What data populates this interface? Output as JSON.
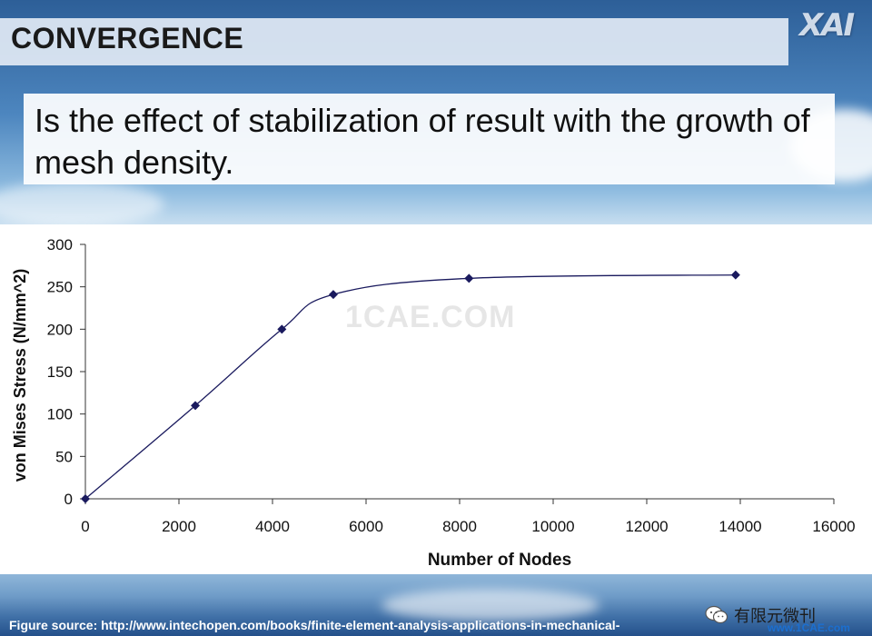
{
  "slide": {
    "title": "CONVERGENCE",
    "logo_text": "XAI",
    "description": "Is the effect of stabilization of result with the growth of mesh density.",
    "watermark": "1CAE.COM",
    "source": "Figure source: http://www.intechopen.com/books/finite-element-analysis-applications-in-mechanical-",
    "badge_text": "有限元微刊",
    "badge_site": "www.1CAE.com"
  },
  "colors": {
    "series": "#1a1a5e",
    "title_bar": "#e1e9f4",
    "site_text": "#1b6fd0"
  },
  "chart_data": {
    "type": "line",
    "title": "",
    "xlabel": "Number of Nodes",
    "ylabel": "von Mises Stress (N/mm^2)",
    "xlim": [
      0,
      16000
    ],
    "ylim": [
      0,
      300
    ],
    "xticks": [
      0,
      2000,
      4000,
      6000,
      8000,
      10000,
      12000,
      14000,
      16000
    ],
    "yticks": [
      0,
      50,
      100,
      150,
      200,
      250,
      300
    ],
    "grid": false,
    "legend": "none",
    "smooth": true,
    "series": [
      {
        "name": "von Mises Stress",
        "x": [
          0,
          2350,
          4200,
          5300,
          8200,
          13900
        ],
        "y": [
          0,
          110,
          200,
          241,
          260,
          264
        ]
      }
    ]
  }
}
